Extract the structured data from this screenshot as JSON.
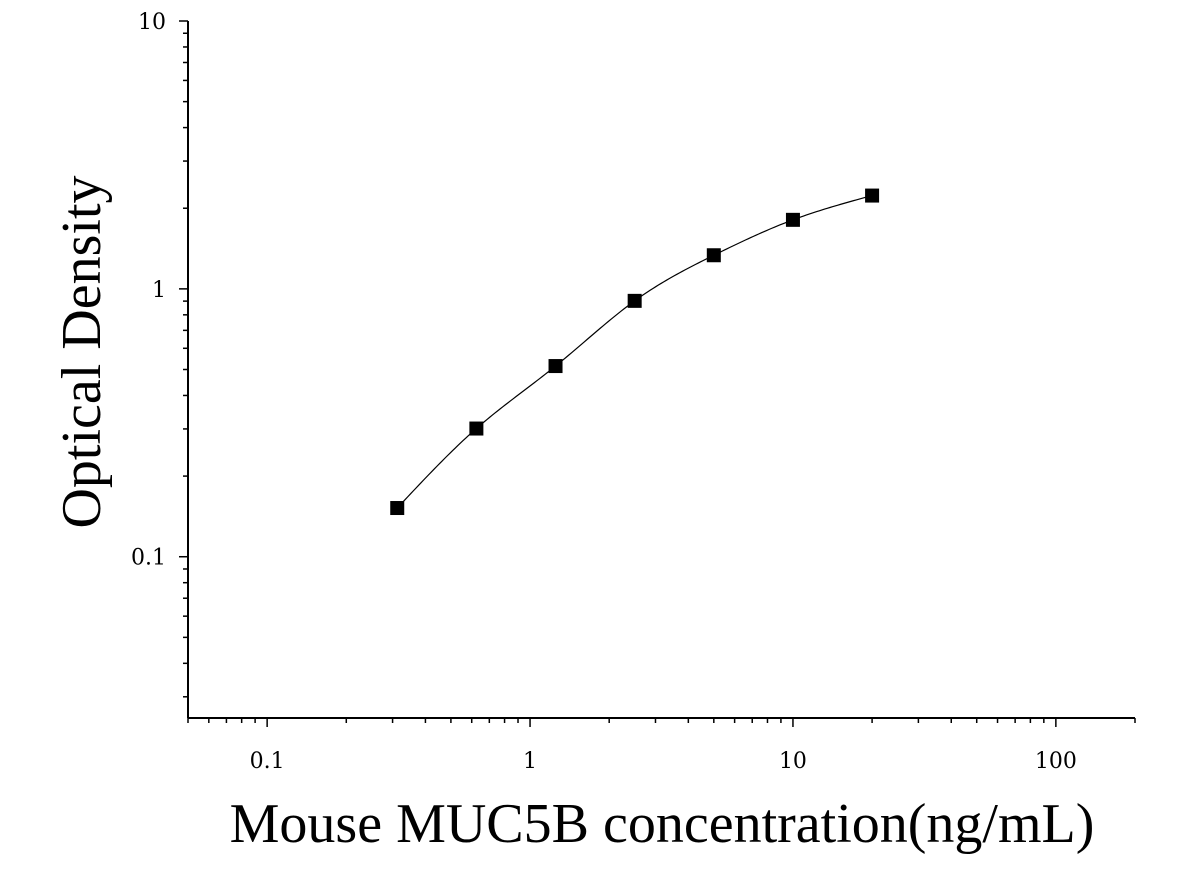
{
  "chart_data": {
    "type": "scatter",
    "title": "",
    "xlabel": "Mouse MUC5B concentration(ng/mL)",
    "ylabel": "Optical Density",
    "xscale": "log",
    "yscale": "log",
    "xlim": [
      0.05,
      200
    ],
    "ylim": [
      0.025,
      10
    ],
    "xticks": [
      0.1,
      1,
      10,
      100
    ],
    "xtick_labels": [
      "0.1",
      "1",
      "10",
      "100"
    ],
    "yticks": [
      0.1,
      1,
      10
    ],
    "ytick_labels": [
      "0.1",
      "1",
      "10"
    ],
    "grid": false,
    "legend": "none",
    "series": [
      {
        "x": [
          0.3125,
          0.625,
          1.25,
          2.5,
          5,
          10,
          20
        ],
        "y": [
          0.152,
          0.301,
          0.515,
          0.902,
          1.335,
          1.81,
          2.23
        ],
        "marker": "square",
        "fit_line": true
      }
    ],
    "colors": {
      "axis": "#000000",
      "marker": "#000000",
      "curve": "#000000"
    }
  }
}
